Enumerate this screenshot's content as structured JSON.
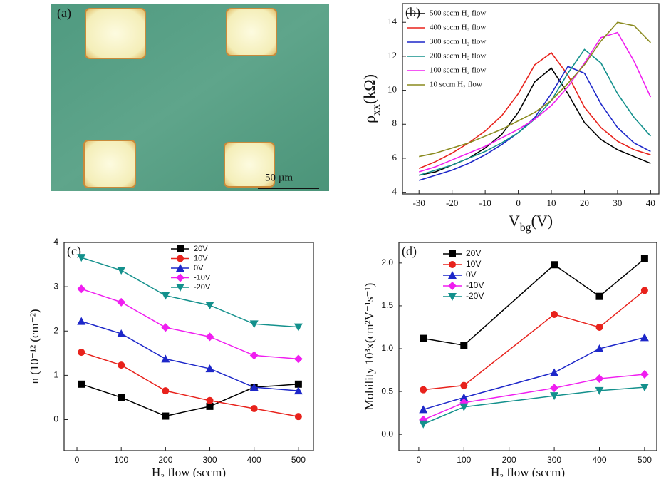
{
  "image_panel": {
    "label": "(a)",
    "scale_bar": "50 µm"
  },
  "chart_data": [
    {
      "type": "line",
      "label": "(b)",
      "legend": "upper left",
      "marker_style": "none",
      "xlabel": {
        "main": "V",
        "sub": "bg",
        "rest": "(V)"
      },
      "ylabel": {
        "main": "ρ",
        "sub": "xx",
        "rest": "(kΩ)"
      },
      "x": [
        -30,
        -25,
        -20,
        -15,
        -10,
        -5,
        0,
        5,
        10,
        15,
        20,
        25,
        30,
        35,
        40
      ],
      "xlim": [
        -35,
        42.5
      ],
      "xticks": [
        -30,
        -20,
        -10,
        0,
        10,
        20,
        30,
        40
      ],
      "ylim": [
        3.9,
        15.1
      ],
      "yticks": [
        4,
        6,
        8,
        10,
        12,
        14
      ],
      "series": [
        {
          "name": "500 sccm H₂ flow",
          "color": "#000000",
          "values": [
            5.0,
            5.2,
            5.6,
            6.0,
            6.6,
            7.4,
            8.7,
            10.5,
            11.3,
            9.8,
            8.1,
            7.1,
            6.5,
            6.1,
            5.7
          ]
        },
        {
          "name": "400 sccm H₂ flow",
          "color": "#e8221c",
          "values": [
            5.4,
            5.8,
            6.3,
            6.9,
            7.6,
            8.5,
            9.8,
            11.5,
            12.2,
            10.9,
            9.0,
            7.8,
            7.0,
            6.5,
            6.2
          ]
        },
        {
          "name": "300 sccm H₂ flow",
          "color": "#1d27c9",
          "values": [
            4.7,
            5.0,
            5.3,
            5.7,
            6.2,
            6.8,
            7.5,
            8.4,
            9.8,
            11.4,
            11.0,
            9.2,
            7.8,
            6.9,
            6.4
          ]
        },
        {
          "name": "200 sccm H₂ flow",
          "color": "#13908c",
          "values": [
            5.0,
            5.3,
            5.6,
            6.0,
            6.4,
            6.9,
            7.5,
            8.3,
            9.4,
            11.0,
            12.4,
            11.6,
            9.8,
            8.4,
            7.3
          ]
        },
        {
          "name": "100 sccm H₂ flow",
          "color": "#f01ef0",
          "values": [
            5.2,
            5.5,
            5.9,
            6.3,
            6.7,
            7.2,
            7.7,
            8.3,
            9.1,
            10.2,
            11.6,
            13.1,
            13.4,
            11.7,
            9.6
          ]
        },
        {
          "name": "10 sccm H₂ flow",
          "color": "#8a8a1e",
          "values": [
            6.1,
            6.3,
            6.6,
            6.9,
            7.3,
            7.7,
            8.2,
            8.7,
            9.4,
            10.4,
            11.5,
            12.9,
            14.0,
            13.8,
            12.8
          ]
        }
      ]
    },
    {
      "type": "line",
      "label": "(c)",
      "legend": "upper right",
      "marker_style": "filled",
      "xlabel": {
        "main": "H₂ flow (sccm)"
      },
      "ylabel": {
        "main": "n (10⁻¹² (cm⁻²)"
      },
      "x": [
        10,
        100,
        200,
        300,
        400,
        500
      ],
      "xlim": [
        -29,
        534
      ],
      "xticks": [
        0,
        100,
        200,
        300,
        400,
        500
      ],
      "ylim": [
        -0.7,
        4
      ],
      "yticks": [
        0,
        1,
        2,
        3,
        4
      ],
      "series": [
        {
          "name": "20V",
          "color": "#000000",
          "marker": "square",
          "values": [
            0.8,
            0.5,
            0.08,
            0.3,
            0.73,
            0.8
          ]
        },
        {
          "name": "10V",
          "color": "#e8221c",
          "marker": "circle",
          "values": [
            1.52,
            1.23,
            0.65,
            0.43,
            0.25,
            0.07
          ]
        },
        {
          "name": "0V",
          "color": "#1d27c9",
          "marker": "triangle",
          "values": [
            2.22,
            1.94,
            1.37,
            1.15,
            0.73,
            0.65
          ]
        },
        {
          "name": "-10V",
          "color": "#f01ef0",
          "marker": "diamond",
          "values": [
            2.95,
            2.65,
            2.08,
            1.87,
            1.45,
            1.37
          ]
        },
        {
          "name": "-20V",
          "color": "#13908c",
          "marker": "triangle-down",
          "values": [
            3.66,
            3.37,
            2.8,
            2.58,
            2.16,
            2.09
          ]
        }
      ]
    },
    {
      "type": "line",
      "label": "(d)",
      "legend": "upper left",
      "marker_style": "filled",
      "xlabel": {
        "main": "H₂ flow (sccm)"
      },
      "ylabel": {
        "main": "Mobility 10³x(cm²V⁻¹s⁻¹)"
      },
      "x": [
        10,
        100,
        300,
        400,
        500
      ],
      "xlim": [
        -44,
        527
      ],
      "xticks": [
        0,
        100,
        200,
        300,
        400,
        500
      ],
      "ylim": [
        -0.19,
        2.24
      ],
      "yticks": [
        {
          "value": 0,
          "label": "0.0"
        },
        0.5,
        {
          "value": 1,
          "label": "1.0"
        },
        1.5,
        {
          "value": 2,
          "label": "2.0"
        }
      ],
      "series": [
        {
          "name": "20V",
          "color": "#000000",
          "marker": "square",
          "values": [
            1.12,
            1.04,
            1.98,
            1.61,
            2.05
          ]
        },
        {
          "name": "10V",
          "color": "#e8221c",
          "marker": "circle",
          "values": [
            0.52,
            0.57,
            1.4,
            1.25,
            1.68
          ]
        },
        {
          "name": "0V",
          "color": "#1d27c9",
          "marker": "triangle",
          "values": [
            0.29,
            0.43,
            0.72,
            1.0,
            1.13
          ]
        },
        {
          "name": "-10V",
          "color": "#f01ef0",
          "marker": "diamond",
          "values": [
            0.17,
            0.37,
            0.54,
            0.65,
            0.7
          ]
        },
        {
          "name": "-20V",
          "color": "#13908c",
          "marker": "triangle-down",
          "values": [
            0.12,
            0.32,
            0.45,
            0.51,
            0.55
          ]
        }
      ]
    }
  ]
}
